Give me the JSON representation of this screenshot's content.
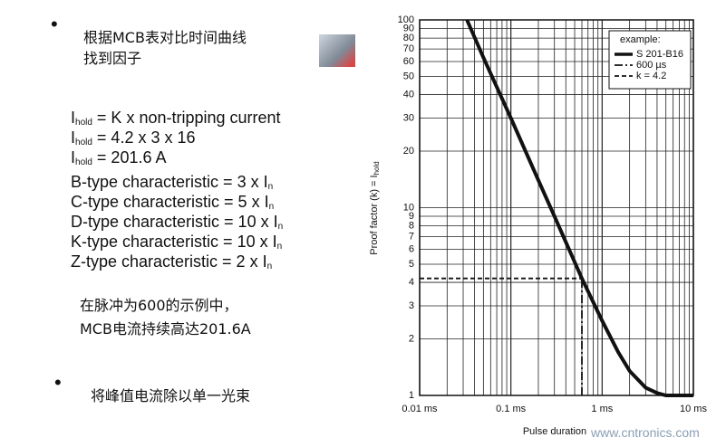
{
  "bullet1": [
    "根据MCB表对比时间曲线",
    "找到因子"
  ],
  "formulas": [
    {
      "main": "I",
      "sub": "hold",
      "rest": " = K x non-tripping current"
    },
    {
      "main": "I",
      "sub": "hold",
      "rest": " = 4.2 x 3 x 16"
    },
    {
      "main": "I",
      "sub": "hold",
      "rest": " = 201.6 A"
    }
  ],
  "characteristics": [
    {
      "text": "B-type characteristic = 3 x I",
      "sub": "n"
    },
    {
      "text": "C-type characteristic = 5 x I",
      "sub": "n"
    },
    {
      "text": "D-type characteristic = 10 x I",
      "sub": "n"
    },
    {
      "text": "K-type characteristic = 10 x I",
      "sub": "n"
    },
    {
      "text": "Z-type characteristic = 2 x I",
      "sub": "n"
    }
  ],
  "note": [
    "在脉冲为600的示例中，",
    "MCB电流持续高达201.6A"
  ],
  "bullet2": "将峰值电流除以单一光束",
  "watermark": "www.cntronics.com",
  "chart_data": {
    "type": "line",
    "x_label": "Pulse duration",
    "y_label": "Proof factor (k) = I",
    "y_label_sub": "hold",
    "log_x": true,
    "log_y": true,
    "grid": true,
    "xlim": [
      0.01,
      10
    ],
    "ylim": [
      1,
      100
    ],
    "xticks": [
      {
        "value": 0.01,
        "label": "0.01 ms"
      },
      {
        "value": 0.1,
        "label": "0.1 ms"
      },
      {
        "value": 1,
        "label": "1 ms"
      },
      {
        "value": 10,
        "label": "10 ms"
      }
    ],
    "yticks": [
      1,
      2,
      3,
      4,
      5,
      6,
      7,
      8,
      9,
      10,
      20,
      30,
      40,
      50,
      60,
      70,
      80,
      90,
      100
    ],
    "x": [
      0.033,
      0.05,
      0.1,
      0.2,
      0.3,
      0.6,
      1,
      1.5,
      2,
      3,
      4,
      5,
      7,
      10
    ],
    "series": [
      {
        "name": "S 201-B16",
        "color": "#111111",
        "values": [
          100,
          63,
          30,
          14,
          9,
          4.2,
          2.5,
          1.7,
          1.35,
          1.1,
          1.03,
          1,
          1,
          1
        ]
      }
    ],
    "legend_title": "example:",
    "legend": "top-right",
    "reference_lines": [
      {
        "name": "600 µs",
        "x": 0.6,
        "style": "dash-dot"
      },
      {
        "name": "k = 4.2",
        "y": 4.2,
        "style": "dashed"
      }
    ]
  }
}
